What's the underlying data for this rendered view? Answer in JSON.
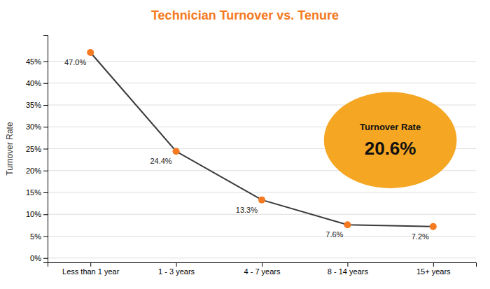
{
  "chart_data": {
    "type": "line",
    "title": "Technician Turnover vs. Tenure",
    "categories": [
      "Less than 1 year",
      "1 - 3 years",
      "4 - 7 years",
      "8 - 14 years",
      "15+ years"
    ],
    "values": [
      47.0,
      24.4,
      13.3,
      7.6,
      7.2
    ],
    "value_labels": [
      "47.0%",
      "24.4%",
      "13.3%",
      "7.6%",
      "7.2%"
    ],
    "data_labels": true,
    "color": "#3a3a3a",
    "marker": "circle",
    "ylabel": "Turnover Rate",
    "ylim": [
      -1,
      51
    ],
    "yticks": [
      {
        "value": 0,
        "label": "0%"
      },
      {
        "value": 5,
        "label": "5%"
      },
      {
        "value": 10,
        "label": "10%"
      },
      {
        "value": 15,
        "label": "15%"
      },
      {
        "value": 20,
        "label": "20%"
      },
      {
        "value": 25,
        "label": "25%"
      },
      {
        "value": 30,
        "label": "30%"
      },
      {
        "value": 35,
        "label": "35%"
      },
      {
        "value": 40,
        "label": "40%"
      },
      {
        "value": 45,
        "label": "45%"
      }
    ],
    "grid": true,
    "annotations": [
      "Turnover Rate",
      "20.6%"
    ]
  }
}
